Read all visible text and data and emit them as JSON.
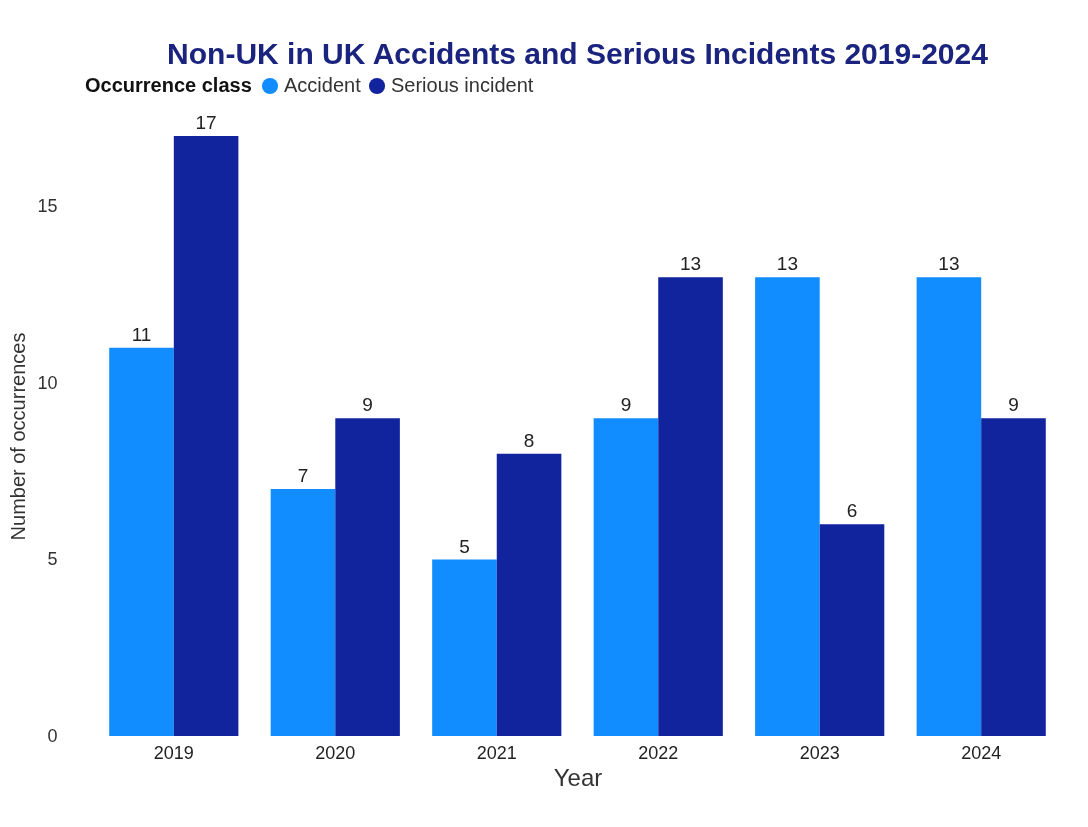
{
  "chart_data": {
    "type": "bar",
    "title": "Non-UK in UK Accidents and Serious Incidents 2019-2024",
    "xlabel": "Year",
    "ylabel": "Number of occurrences",
    "legend_title": "Occurrence class",
    "legend": "top left",
    "categories": [
      "2019",
      "2020",
      "2021",
      "2022",
      "2023",
      "2024"
    ],
    "series": [
      {
        "name": "Accident",
        "color": "#118dff",
        "values": [
          11,
          7,
          5,
          9,
          13,
          13
        ]
      },
      {
        "name": "Serious incident",
        "color": "#12239e",
        "values": [
          17,
          9,
          8,
          13,
          6,
          9
        ]
      }
    ],
    "ylim": [
      0,
      17
    ],
    "yticks": [
      0,
      5,
      10,
      15
    ],
    "grid": false,
    "data_labels": true
  }
}
